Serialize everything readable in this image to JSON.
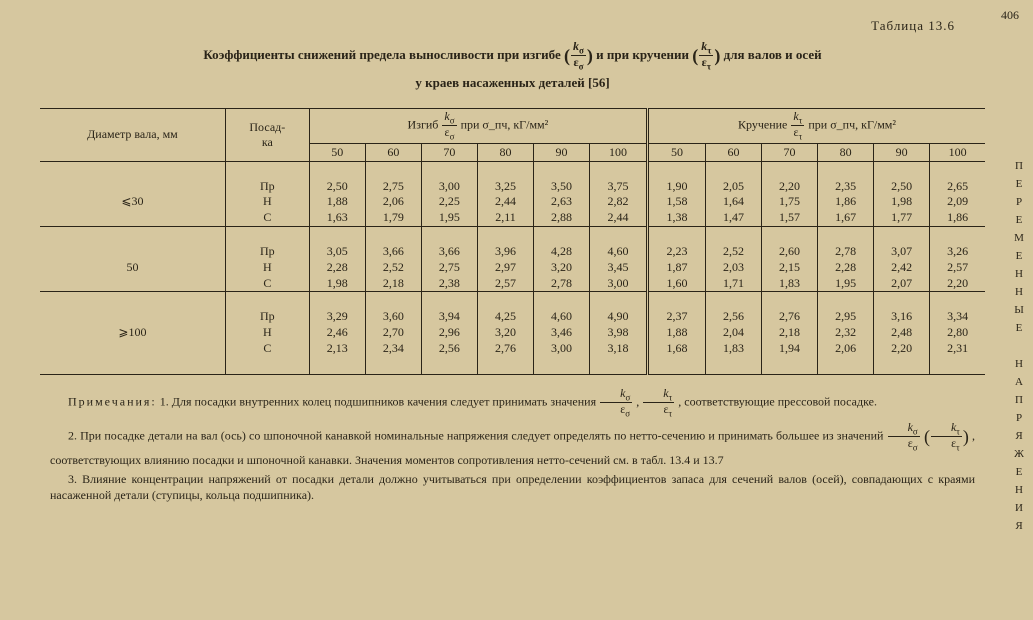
{
  "page_number": "406",
  "side_label": "ПЕРЕМЕННЫЕ НАПРЯЖЕНИЯ",
  "table_number": "Таблица 13.6",
  "title_line1_a": "Коэффициенты снижений предела выносливости при изгибе",
  "title_line1_b": "и при кручении",
  "title_line1_c": "для валов и осей",
  "title_line2": "у краев насаженных деталей [56]",
  "frac_sigma_n": "k_σ",
  "frac_sigma_d": "ε_σ",
  "frac_tau_n": "k_τ",
  "frac_tau_d": "ε_τ",
  "hdr_diam": "Диаметр вала, мм",
  "hdr_fit": "Посад-\nка",
  "hdr_bend_a": "Изгиб",
  "hdr_bend_b": "при σ_пч, кГ/мм²",
  "hdr_tors_a": "Кручение",
  "hdr_tors_b": "при σ_пч, кГ/мм²",
  "cols": [
    "50",
    "60",
    "70",
    "80",
    "90",
    "100"
  ],
  "blocks": [
    {
      "diam": "⩽30",
      "fits": [
        "Пр",
        "Н",
        "С"
      ],
      "bend": [
        [
          "2,50",
          "2,75",
          "3,00",
          "3,25",
          "3,50",
          "3,75"
        ],
        [
          "1,88",
          "2,06",
          "2,25",
          "2,44",
          "2,63",
          "2,82"
        ],
        [
          "1,63",
          "1,79",
          "1,95",
          "2,11",
          "2,88",
          "2,44"
        ]
      ],
      "tors": [
        [
          "1,90",
          "2,05",
          "2,20",
          "2,35",
          "2,50",
          "2,65"
        ],
        [
          "1,58",
          "1,64",
          "1,75",
          "1,86",
          "1,98",
          "2,09"
        ],
        [
          "1,38",
          "1,47",
          "1,57",
          "1,67",
          "1,77",
          "1,86"
        ]
      ]
    },
    {
      "diam": "50",
      "fits": [
        "Пр",
        "Н",
        "С"
      ],
      "bend": [
        [
          "3,05",
          "3,66",
          "3,66",
          "3,96",
          "4,28",
          "4,60"
        ],
        [
          "2,28",
          "2,52",
          "2,75",
          "2,97",
          "3,20",
          "3,45"
        ],
        [
          "1,98",
          "2,18",
          "2,38",
          "2,57",
          "2,78",
          "3,00"
        ]
      ],
      "tors": [
        [
          "2,23",
          "2,52",
          "2,60",
          "2,78",
          "3,07",
          "3,26"
        ],
        [
          "1,87",
          "2,03",
          "2,15",
          "2,28",
          "2,42",
          "2,57"
        ],
        [
          "1,60",
          "1,71",
          "1,83",
          "1,95",
          "2,07",
          "2,20"
        ]
      ]
    },
    {
      "diam": "⩾100",
      "fits": [
        "Пр",
        "Н",
        "С"
      ],
      "bend": [
        [
          "3,29",
          "3,60",
          "3,94",
          "4,25",
          "4,60",
          "4,90"
        ],
        [
          "2,46",
          "2,70",
          "2,96",
          "3,20",
          "3,46",
          "3,98"
        ],
        [
          "2,13",
          "2,34",
          "2,56",
          "2,76",
          "3,00",
          "3,18"
        ]
      ],
      "tors": [
        [
          "2,37",
          "2,56",
          "2,76",
          "2,95",
          "3,16",
          "3,34"
        ],
        [
          "1,88",
          "2,04",
          "2,18",
          "2,32",
          "2,48",
          "2,80"
        ],
        [
          "1,68",
          "1,83",
          "1,94",
          "2,06",
          "2,20",
          "2,31"
        ]
      ]
    }
  ],
  "notes_label": "Примечания:",
  "note1_a": "1. Для посадки внутренних колец подшипников качения следует принимать значения",
  "note1_b": ", соответствующие прессовой посадке.",
  "note2_a": "2. При посадке детали на вал (ось) со шпоночной канавкой номинальные напряжения следует определять по нетто-сечению и принимать большее из значений",
  "note2_b": ", соответствующих влиянию посадки и шпоночной канавки. Значения моментов сопротивления нетто-сечений см. в табл. 13.4 и 13.7",
  "note3": "3. Влияние концентрации напряжений от посадки детали должно учитываться при определении коэффициентов запаса для сечений валов (осей), совпадающих с краями насаженной детали (ступицы, кольца подшипника)."
}
